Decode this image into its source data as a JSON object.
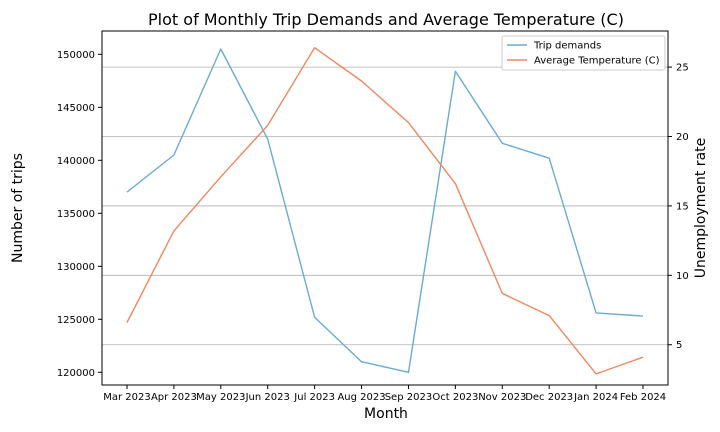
{
  "chart_data": {
    "type": "line",
    "title": "Plot of Monthly Trip Demands and Average Temperature (C)",
    "xlabel": "Month",
    "ylabel": "Number of trips",
    "y2label": "Unemployment rate",
    "categories": [
      "Mar 2023",
      "Apr 2023",
      "May 2023",
      "Jun 2023",
      "Jul 2023",
      "Aug 2023",
      "Sep 2023",
      "Oct 2023",
      "Nov 2023",
      "Dec 2023",
      "Jan 2024",
      "Feb 2024"
    ],
    "ylim": [
      118800,
      152200
    ],
    "y2lim": [
      2.1,
      27.6
    ],
    "yticks": [
      120000,
      125000,
      130000,
      135000,
      140000,
      145000,
      150000
    ],
    "y2ticks": [
      5,
      10,
      15,
      20,
      25
    ],
    "grid": "horizontal lines at right-axis ticks",
    "legend": "top-right",
    "series": [
      {
        "name": "Trip demands",
        "axis": "left",
        "color": "#6aabcf",
        "values": [
          137000,
          140500,
          150500,
          142000,
          125200,
          121000,
          120000,
          148400,
          141600,
          140200,
          125600,
          125300
        ]
      },
      {
        "name": "Average Temperature (C)",
        "axis": "right",
        "color": "#ec8861",
        "values": [
          6.6,
          13.2,
          17.1,
          20.8,
          26.4,
          24.0,
          21.0,
          16.6,
          8.7,
          7.1,
          2.9,
          4.1
        ]
      }
    ]
  }
}
